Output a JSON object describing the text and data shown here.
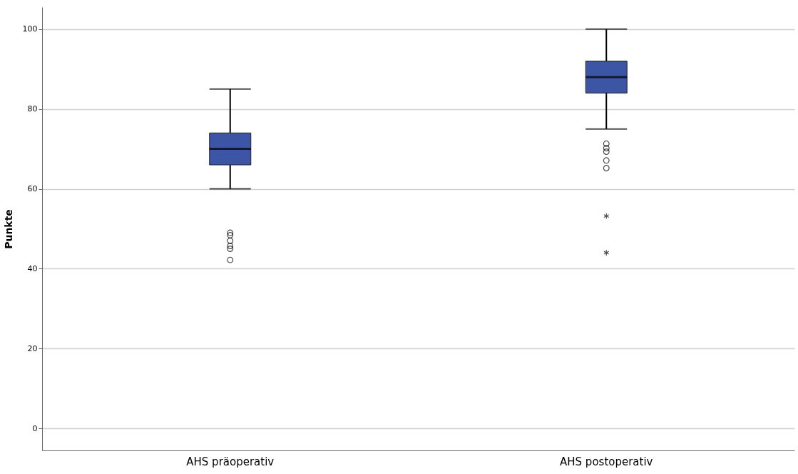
{
  "chart_data": {
    "type": "box",
    "ylabel": "Punkte",
    "categories": [
      "AHS präoperativ",
      "AHS postoperativ"
    ],
    "boxes": [
      {
        "low": 60,
        "q1": 66,
        "median": 70,
        "q3": 74,
        "high": 85,
        "outliers": [
          49,
          48.4,
          47,
          45.7,
          45,
          42.2
        ]
      },
      {
        "low": 75,
        "q1": 84,
        "median": 88,
        "q3": 92,
        "high": 100,
        "outliers": [
          71.3,
          70.2,
          69.3,
          67.1,
          65.2,
          53.2,
          44
        ]
      }
    ],
    "color": "#3c56a5",
    "ylim": [
      -5.5,
      105.5
    ],
    "yticks": [
      0,
      20,
      40,
      60,
      80,
      100
    ],
    "grid": "y"
  }
}
